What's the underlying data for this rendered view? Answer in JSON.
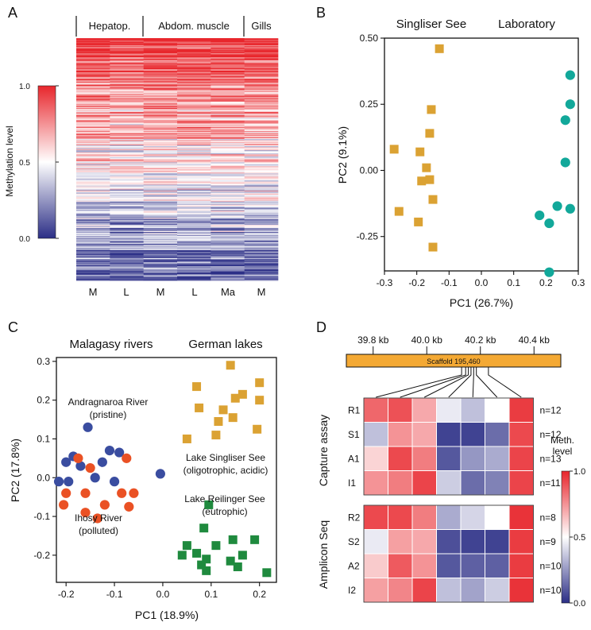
{
  "colors": {
    "low": "#2b2e86",
    "mid": "#ffffff",
    "high": "#e8262c",
    "singliser": "#dba233",
    "laboratory": "#12a89a",
    "malagasy_blue": "#3a4da0",
    "malagasy_orange": "#ea5124",
    "reilinger": "#1f8a3e",
    "scaffold_bar": "#f4a934"
  },
  "chart_data": [
    {
      "panel_label": "A",
      "type": "heatmap",
      "ylabel": "Methylation level",
      "colorbar": {
        "min_label": "0.0",
        "mid_label": "0.5",
        "max_label": "1.0",
        "range": [
          0,
          1
        ]
      },
      "groups": [
        "Hepatop.",
        "Abdom. muscle",
        "Gills"
      ],
      "columns": [
        "M",
        "L",
        "M",
        "L",
        "Ma",
        "M"
      ],
      "column_groups": [
        0,
        0,
        1,
        1,
        1,
        2
      ],
      "row_count": 240,
      "sort_order": "descending mean methylation",
      "column_mean_profile": [
        0.66,
        0.62,
        0.68,
        0.67,
        0.66,
        0.64
      ]
    },
    {
      "panel_label": "B",
      "type": "scatter",
      "xlabel": "PC1 (26.7%)",
      "ylabel": "PC2 (9.1%)",
      "xlim": [
        -0.3,
        0.3
      ],
      "ylim": [
        -0.38,
        0.5
      ],
      "xticks": [
        -0.3,
        -0.2,
        -0.1,
        0.0,
        0.1,
        0.2,
        0.3
      ],
      "xtick_labels": [
        "-0.3",
        "-0.2",
        "-0.1",
        "0.0",
        "0.1",
        "0.2",
        "0.3"
      ],
      "yticks": [
        -0.25,
        0.0,
        0.25,
        0.5
      ],
      "ytick_labels": [
        "-0.25",
        "0.00",
        "0.25",
        "0.50"
      ],
      "series": [
        {
          "name": "Singliser See",
          "marker": "square",
          "color": "#dba233",
          "points": [
            [
              -0.13,
              0.46
            ],
            [
              -0.155,
              0.23
            ],
            [
              -0.16,
              0.14
            ],
            [
              -0.27,
              0.08
            ],
            [
              -0.19,
              0.07
            ],
            [
              -0.17,
              0.01
            ],
            [
              -0.185,
              -0.04
            ],
            [
              -0.16,
              -0.035
            ],
            [
              -0.15,
              -0.11
            ],
            [
              -0.255,
              -0.155
            ],
            [
              -0.195,
              -0.195
            ],
            [
              -0.15,
              -0.29
            ]
          ]
        },
        {
          "name": "Laboratory",
          "marker": "circle",
          "color": "#12a89a",
          "points": [
            [
              0.275,
              0.36
            ],
            [
              0.275,
              0.25
            ],
            [
              0.26,
              0.19
            ],
            [
              0.26,
              0.03
            ],
            [
              0.235,
              -0.135
            ],
            [
              0.275,
              -0.145
            ],
            [
              0.18,
              -0.17
            ],
            [
              0.21,
              -0.2
            ],
            [
              0.21,
              -0.385
            ]
          ]
        }
      ]
    },
    {
      "panel_label": "C",
      "type": "scatter",
      "xlabel": "PC1 (18.9%)",
      "ylabel": "PC2 (17.8%)",
      "xlim": [
        -0.22,
        0.235
      ],
      "ylim": [
        -0.27,
        0.31
      ],
      "xticks": [
        -0.2,
        -0.1,
        0.0,
        0.1,
        0.2
      ],
      "xtick_labels": [
        "-0.2",
        "-0.1",
        "0.0",
        "0.1",
        "0.2"
      ],
      "yticks": [
        -0.2,
        -0.1,
        0.0,
        0.1,
        0.2,
        0.3
      ],
      "ytick_labels": [
        "-0.2",
        "-0.1",
        "0.0",
        "0.1",
        "0.2",
        "0.3"
      ],
      "group_titles": [
        "Malagasy rivers",
        "German lakes"
      ],
      "annotations": [
        {
          "lines": [
            "Andragnaroa River",
            "(pristine)"
          ],
          "anchor": "upper-left"
        },
        {
          "lines": [
            "Ihosy River",
            "(polluted)"
          ],
          "anchor": "lower-left"
        },
        {
          "lines": [
            "Lake Singliser See",
            "(oligotrophic, acidic)"
          ],
          "anchor": "middle-right"
        },
        {
          "lines": [
            "Lake Reilinger See",
            "(eutrophic)"
          ],
          "anchor": "lower-right"
        }
      ],
      "series": [
        {
          "name": "Andragnaroa River",
          "marker": "circle",
          "color": "#3a4da0",
          "points": [
            [
              -0.155,
              0.13
            ],
            [
              -0.185,
              0.055
            ],
            [
              -0.2,
              0.04
            ],
            [
              -0.11,
              0.07
            ],
            [
              -0.09,
              0.065
            ],
            [
              -0.125,
              0.04
            ],
            [
              -0.17,
              0.03
            ],
            [
              -0.14,
              0.0
            ],
            [
              -0.1,
              -0.01
            ],
            [
              -0.215,
              -0.01
            ],
            [
              -0.195,
              -0.01
            ],
            [
              -0.005,
              0.01
            ]
          ]
        },
        {
          "name": "Ihosy River",
          "marker": "circle",
          "color": "#ea5124",
          "points": [
            [
              -0.175,
              0.05
            ],
            [
              -0.15,
              0.025
            ],
            [
              -0.075,
              0.05
            ],
            [
              -0.2,
              -0.04
            ],
            [
              -0.16,
              -0.04
            ],
            [
              -0.085,
              -0.04
            ],
            [
              -0.06,
              -0.04
            ],
            [
              -0.12,
              -0.07
            ],
            [
              -0.205,
              -0.07
            ],
            [
              -0.07,
              -0.075
            ],
            [
              -0.16,
              -0.09
            ],
            [
              -0.135,
              -0.105
            ]
          ]
        },
        {
          "name": "Lake Singliser See",
          "marker": "square",
          "color": "#dba233",
          "points": [
            [
              0.14,
              0.29
            ],
            [
              0.2,
              0.245
            ],
            [
              0.07,
              0.235
            ],
            [
              0.165,
              0.215
            ],
            [
              0.15,
              0.205
            ],
            [
              0.2,
              0.2
            ],
            [
              0.075,
              0.18
            ],
            [
              0.125,
              0.175
            ],
            [
              0.145,
              0.155
            ],
            [
              0.115,
              0.145
            ],
            [
              0.195,
              0.125
            ],
            [
              0.11,
              0.11
            ],
            [
              0.05,
              0.1
            ]
          ]
        },
        {
          "name": "Lake Reilinger See",
          "marker": "square",
          "color": "#1f8a3e",
          "points": [
            [
              0.095,
              -0.07
            ],
            [
              0.085,
              -0.13
            ],
            [
              0.145,
              -0.16
            ],
            [
              0.19,
              -0.16
            ],
            [
              0.05,
              -0.175
            ],
            [
              0.11,
              -0.175
            ],
            [
              0.07,
              -0.195
            ],
            [
              0.04,
              -0.2
            ],
            [
              0.165,
              -0.2
            ],
            [
              0.09,
              -0.21
            ],
            [
              0.14,
              -0.215
            ],
            [
              0.08,
              -0.225
            ],
            [
              0.155,
              -0.23
            ],
            [
              0.09,
              -0.24
            ],
            [
              0.215,
              -0.245
            ]
          ]
        }
      ]
    },
    {
      "panel_label": "D",
      "type": "heatmap",
      "scaffold": {
        "label": "Scaffold 195,460",
        "tick_labels": [
          "39.8 kb",
          "40.0 kb",
          "40.2 kb",
          "40.4 kb"
        ],
        "tick_kb": [
          39.8,
          40.0,
          40.2,
          40.4
        ],
        "range_kb": [
          39.7,
          40.5
        ]
      },
      "cpg_positions_kb": [
        40.13,
        40.145,
        40.155,
        40.165,
        40.175,
        40.185,
        40.23
      ],
      "colorbar": {
        "title_lines": [
          "Meth.",
          "level"
        ],
        "tick_labels": [
          "0.0",
          "0.5",
          "1.0"
        ],
        "range": [
          0,
          1
        ]
      },
      "blocks": [
        {
          "title": "Capture assay",
          "rows": [
            {
              "label": "R1",
              "n": "n=12",
              "values": [
                0.85,
                0.9,
                0.7,
                0.45,
                0.35,
                0.5,
                0.95
              ]
            },
            {
              "label": "S1",
              "n": "n=12",
              "values": [
                0.35,
                0.75,
                0.7,
                0.05,
                0.05,
                0.15,
                0.92
              ]
            },
            {
              "label": "A1",
              "n": "n=13",
              "values": [
                0.6,
                0.92,
                0.8,
                0.1,
                0.25,
                0.3,
                0.93
              ]
            },
            {
              "label": "I1",
              "n": "n=11",
              "values": [
                0.75,
                0.8,
                0.93,
                0.38,
                0.15,
                0.2,
                0.93
              ]
            }
          ]
        },
        {
          "title": "Amplicon Seq",
          "rows": [
            {
              "label": "R2",
              "n": "n=8",
              "values": [
                0.92,
                0.92,
                0.8,
                0.3,
                0.4,
                0.5,
                0.97
              ]
            },
            {
              "label": "S2",
              "n": "n=9",
              "values": [
                0.45,
                0.72,
                0.7,
                0.08,
                0.05,
                0.05,
                0.95
              ]
            },
            {
              "label": "A2",
              "n": "n=10",
              "values": [
                0.62,
                0.88,
                0.75,
                0.1,
                0.12,
                0.12,
                0.95
              ]
            },
            {
              "label": "I2",
              "n": "n=10",
              "values": [
                0.72,
                0.78,
                0.93,
                0.35,
                0.28,
                0.38,
                0.97
              ]
            }
          ]
        }
      ]
    }
  ]
}
